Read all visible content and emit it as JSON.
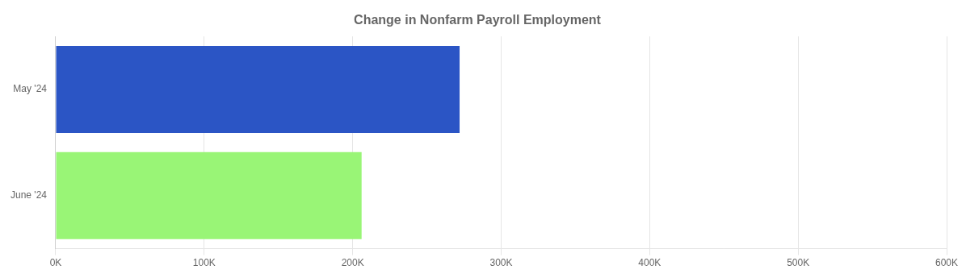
{
  "chart_data": {
    "type": "bar",
    "orientation": "horizontal",
    "title": "Change in Nonfarm Payroll Employment",
    "categories": [
      "May '24",
      "June '24"
    ],
    "values": [
      272000,
      206000
    ],
    "colors": [
      "#2b55c5",
      "#99f576"
    ],
    "xlim": [
      0,
      600000
    ],
    "xticks": [
      {
        "value": 0,
        "label": "0K"
      },
      {
        "value": 100000,
        "label": "100K"
      },
      {
        "value": 200000,
        "label": "200K"
      },
      {
        "value": 300000,
        "label": "300K"
      },
      {
        "value": 400000,
        "label": "400K"
      },
      {
        "value": 500000,
        "label": "500K"
      },
      {
        "value": 600000,
        "label": "600K"
      }
    ],
    "grid": true
  }
}
